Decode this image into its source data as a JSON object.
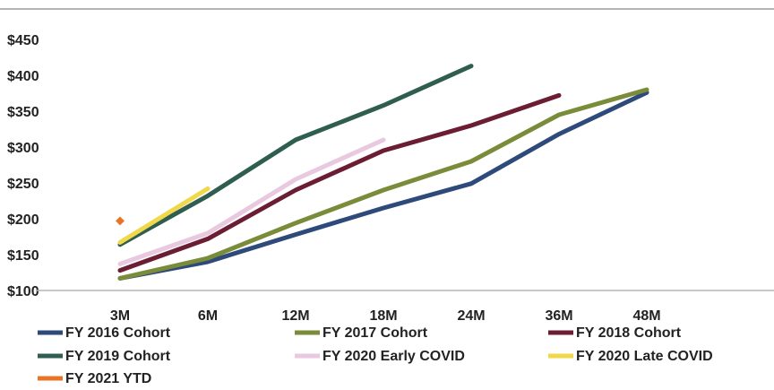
{
  "chart_data": {
    "type": "line",
    "title": "",
    "xlabel": "",
    "ylabel": "",
    "categories": [
      "3M",
      "6M",
      "12M",
      "18M",
      "24M",
      "36M",
      "48M"
    ],
    "ylim": [
      100,
      450
    ],
    "yticks": [
      100,
      150,
      200,
      250,
      300,
      350,
      400,
      450
    ],
    "ytick_labels": [
      "$100",
      "$150",
      "$200",
      "$250",
      "$300",
      "$350",
      "$400",
      "$450"
    ],
    "grid": false,
    "legend_position": "bottom",
    "series": [
      {
        "name": "FY 2016 Cohort",
        "color": "#2e4a7a",
        "values": [
          117,
          140,
          178,
          215,
          249,
          318,
          376
        ]
      },
      {
        "name": "FY 2017 Cohort",
        "color": "#7a8c3a",
        "values": [
          117,
          145,
          194,
          240,
          280,
          345,
          380
        ]
      },
      {
        "name": "FY 2018 Cohort",
        "color": "#6b1d34",
        "values": [
          128,
          172,
          240,
          295,
          330,
          372,
          null
        ]
      },
      {
        "name": "FY 2019 Cohort",
        "color": "#2f5d50",
        "values": [
          164,
          232,
          310,
          358,
          413,
          null,
          null
        ]
      },
      {
        "name": "FY 2020 Early COVID",
        "color": "#e8c9df",
        "values": [
          137,
          180,
          255,
          310,
          null,
          null,
          null
        ]
      },
      {
        "name": "FY 2020 Late COVID",
        "color": "#f0d84a",
        "values": [
          167,
          242,
          null,
          null,
          null,
          null,
          null
        ]
      },
      {
        "name": "FY 2021 YTD",
        "color": "#e8742a",
        "values": [
          197,
          null,
          null,
          null,
          null,
          null,
          null
        ]
      }
    ]
  }
}
